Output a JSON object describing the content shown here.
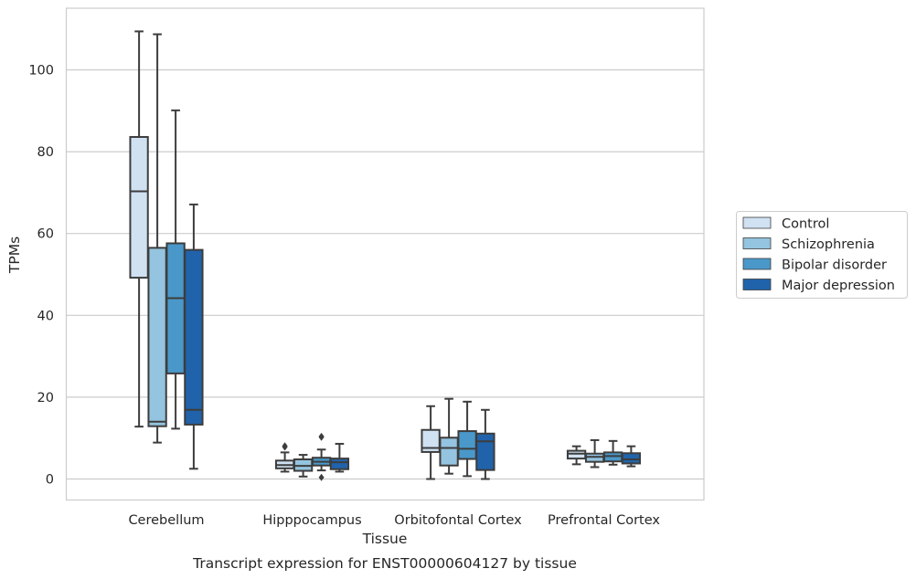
{
  "chart_data": {
    "type": "boxplot",
    "title": "Transcript expression for ENST00000604127 by tissue",
    "xlabel": "Tissue",
    "ylabel": "TPMs",
    "ylim": [
      -5.3,
      115.5
    ],
    "yticks": [
      0,
      20,
      40,
      60,
      80,
      100
    ],
    "grid": "horizontal",
    "legend_position": "right",
    "categories": [
      "Cerebellum",
      "Hipppocampus",
      "Orbitofontal Cortex",
      "Prefrontal Cortex"
    ],
    "series": [
      {
        "name": "Control",
        "color": "#d0e1f2",
        "boxes": [
          {
            "whislo": 12.8,
            "q1": 49.2,
            "med": 70.3,
            "q3": 83.6,
            "whishi": 109.4,
            "fliers": []
          },
          {
            "whislo": 1.8,
            "q1": 2.6,
            "med": 3.4,
            "q3": 4.5,
            "whishi": 6.5,
            "fliers": [
              7.8,
              8.1
            ]
          },
          {
            "whislo": 0.0,
            "q1": 6.6,
            "med": 7.6,
            "q3": 12.0,
            "whishi": 17.8,
            "fliers": []
          },
          {
            "whislo": 3.6,
            "q1": 5.0,
            "med": 6.2,
            "q3": 6.9,
            "whishi": 8.0,
            "fliers": []
          }
        ]
      },
      {
        "name": "Schizophrenia",
        "color": "#94c4df",
        "boxes": [
          {
            "whislo": 8.9,
            "q1": 12.9,
            "med": 14.0,
            "q3": 56.5,
            "whishi": 108.7,
            "fliers": []
          },
          {
            "whislo": 0.6,
            "q1": 2.0,
            "med": 3.2,
            "q3": 4.8,
            "whishi": 5.9,
            "fliers": []
          },
          {
            "whislo": 1.3,
            "q1": 3.3,
            "med": 7.6,
            "q3": 10.1,
            "whishi": 19.6,
            "fliers": []
          },
          {
            "whislo": 2.9,
            "q1": 4.2,
            "med": 5.4,
            "q3": 6.2,
            "whishi": 9.5,
            "fliers": []
          }
        ]
      },
      {
        "name": "Bipolar disorder",
        "color": "#4a98c9",
        "boxes": [
          {
            "whislo": 12.3,
            "q1": 25.8,
            "med": 44.2,
            "q3": 57.6,
            "whishi": 90.1,
            "fliers": []
          },
          {
            "whislo": 2.1,
            "q1": 3.3,
            "med": 4.2,
            "q3": 5.2,
            "whishi": 7.2,
            "fliers": [
              10.2,
              10.4,
              0.4
            ]
          },
          {
            "whislo": 0.7,
            "q1": 4.9,
            "med": 7.4,
            "q3": 11.7,
            "whishi": 18.9,
            "fliers": []
          },
          {
            "whislo": 3.5,
            "q1": 4.3,
            "med": 5.6,
            "q3": 6.5,
            "whishi": 9.3,
            "fliers": []
          }
        ]
      },
      {
        "name": "Major depression",
        "color": "#2063ab",
        "boxes": [
          {
            "whislo": 2.5,
            "q1": 13.3,
            "med": 16.9,
            "q3": 56.0,
            "whishi": 67.1,
            "fliers": []
          },
          {
            "whislo": 1.8,
            "q1": 2.4,
            "med": 4.1,
            "q3": 5.0,
            "whishi": 8.6,
            "fliers": []
          },
          {
            "whislo": 0.0,
            "q1": 2.2,
            "med": 9.2,
            "q3": 11.1,
            "whishi": 16.9,
            "fliers": []
          },
          {
            "whislo": 3.1,
            "q1": 3.8,
            "med": 4.8,
            "q3": 6.3,
            "whishi": 8.0,
            "fliers": []
          }
        ]
      }
    ]
  }
}
